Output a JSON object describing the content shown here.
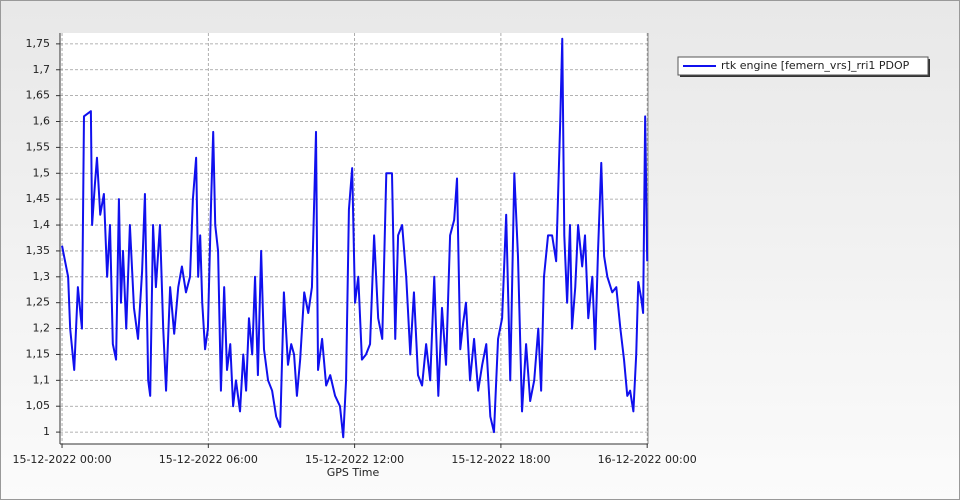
{
  "chart_data": {
    "type": "line",
    "xlabel": "GPS Time",
    "xlim": [
      "2022-12-14T23:55",
      "2022-12-16T00:02"
    ],
    "xticks": [
      {
        "value": "2022-12-15T00:00",
        "label": "15-12-2022 00:00"
      },
      {
        "value": "2022-12-15T06:00",
        "label": "15-12-2022 06:00"
      },
      {
        "value": "2022-12-15T12:00",
        "label": "15-12-2022 12:00"
      },
      {
        "value": "2022-12-15T18:00",
        "label": "15-12-2022 18:00"
      },
      {
        "value": "2022-12-16T00:00",
        "label": "16-12-2022 00:00"
      }
    ],
    "ylim": [
      0.977,
      1.771
    ],
    "yticks": [
      1,
      {
        "value": 1.05,
        "label": "1,05"
      },
      {
        "value": 1.1,
        "label": "1,1"
      },
      {
        "value": 1.15,
        "label": "1,15"
      },
      {
        "value": 1.2,
        "label": "1,2"
      },
      {
        "value": 1.25,
        "label": "1,25"
      },
      {
        "value": 1.3,
        "label": "1,3"
      },
      {
        "value": 1.35,
        "label": "1,35"
      },
      {
        "value": 1.4,
        "label": "1,4"
      },
      {
        "value": 1.45,
        "label": "1,45"
      },
      {
        "value": 1.5,
        "label": "1,5"
      },
      {
        "value": 1.55,
        "label": "1,55"
      },
      {
        "value": 1.6,
        "label": "1,6"
      },
      {
        "value": 1.65,
        "label": "1,65"
      },
      {
        "value": 1.7,
        "label": "1,7"
      },
      {
        "value": 1.75,
        "label": "1,75"
      }
    ],
    "grid": true,
    "legend": "right",
    "x": [
      "2022-12-15T00:00",
      "2022-12-15T00:15",
      "2022-12-15T00:20",
      "2022-12-15T00:30",
      "2022-12-15T00:39",
      "2022-12-15T00:49",
      "2022-12-15T00:54",
      "2022-12-15T01:11",
      "2022-12-15T01:14",
      "2022-12-15T01:21",
      "2022-12-15T01:26",
      "2022-12-15T01:34",
      "2022-12-15T01:43",
      "2022-12-15T01:51",
      "2022-12-15T01:58",
      "2022-12-15T02:05",
      "2022-12-15T02:13",
      "2022-12-15T02:20",
      "2022-12-15T02:25",
      "2022-12-15T02:30",
      "2022-12-15T02:38",
      "2022-12-15T02:47",
      "2022-12-15T02:57",
      "2022-12-15T03:07",
      "2022-12-15T03:17",
      "2022-12-15T03:24",
      "2022-12-15T03:32",
      "2022-12-15T03:37",
      "2022-12-15T03:44",
      "2022-12-15T03:51",
      "2022-12-15T04:01",
      "2022-12-15T04:09",
      "2022-12-15T04:16",
      "2022-12-15T04:26",
      "2022-12-15T04:36",
      "2022-12-15T04:46",
      "2022-12-15T04:55",
      "2022-12-15T05:05",
      "2022-12-15T05:15",
      "2022-12-15T05:22",
      "2022-12-15T05:30",
      "2022-12-15T05:35",
      "2022-12-15T05:40",
      "2022-12-15T05:45",
      "2022-12-15T05:52",
      "2022-12-15T05:59",
      "2022-12-15T06:07",
      "2022-12-15T06:12",
      "2022-12-15T06:17",
      "2022-12-15T06:24",
      "2022-12-15T06:31",
      "2022-12-15T06:39",
      "2022-12-15T06:46",
      "2022-12-15T06:54",
      "2022-12-15T07:01",
      "2022-12-15T07:08",
      "2022-12-15T07:18",
      "2022-12-15T07:26",
      "2022-12-15T07:33",
      "2022-12-15T07:40",
      "2022-12-15T07:48",
      "2022-12-15T07:55",
      "2022-12-15T08:02",
      "2022-12-15T08:10",
      "2022-12-15T08:17",
      "2022-12-15T08:27",
      "2022-12-15T08:37",
      "2022-12-15T08:47",
      "2022-12-15T08:57",
      "2022-12-15T09:06",
      "2022-12-15T09:16",
      "2022-12-15T09:24",
      "2022-12-15T09:31",
      "2022-12-15T09:38",
      "2022-12-15T09:46",
      "2022-12-15T09:56",
      "2022-12-15T10:06",
      "2022-12-15T10:15",
      "2022-12-15T10:25",
      "2022-12-15T10:30",
      "2022-12-15T10:40",
      "2022-12-15T10:50",
      "2022-12-15T11:00",
      "2022-12-15T11:12",
      "2022-12-15T11:24",
      "2022-12-15T11:32",
      "2022-12-15T11:39",
      "2022-12-15T11:46",
      "2022-12-15T11:54",
      "2022-12-15T12:01",
      "2022-12-15T12:09",
      "2022-12-15T12:18",
      "2022-12-15T12:28",
      "2022-12-15T12:38",
      "2022-12-15T12:48",
      "2022-12-15T12:58",
      "2022-12-15T13:08",
      "2022-12-15T13:18",
      "2022-12-15T13:32",
      "2022-12-15T13:40",
      "2022-12-15T13:47",
      "2022-12-15T13:57",
      "2022-12-15T14:07",
      "2022-12-15T14:17",
      "2022-12-15T14:26",
      "2022-12-15T14:36",
      "2022-12-15T14:46",
      "2022-12-15T14:56",
      "2022-12-15T15:06",
      "2022-12-15T15:16",
      "2022-12-15T15:26",
      "2022-12-15T15:35",
      "2022-12-15T15:45",
      "2022-12-15T15:55",
      "2022-12-15T16:05",
      "2022-12-15T16:12",
      "2022-12-15T16:20",
      "2022-12-15T16:27",
      "2022-12-15T16:34",
      "2022-12-15T16:44",
      "2022-12-15T16:54",
      "2022-12-15T17:04",
      "2022-12-15T17:14",
      "2022-12-15T17:24",
      "2022-12-15T17:34",
      "2022-12-15T17:43",
      "2022-12-15T17:53",
      "2022-12-15T18:03",
      "2022-12-15T18:13",
      "2022-12-15T18:23",
      "2022-12-15T18:33",
      "2022-12-15T18:42",
      "2022-12-15T18:52",
      "2022-12-15T19:02",
      "2022-12-15T19:12",
      "2022-12-15T19:22",
      "2022-12-15T19:32",
      "2022-12-15T19:39",
      "2022-12-15T19:46",
      "2022-12-15T19:56",
      "2022-12-15T20:06",
      "2022-12-15T20:16",
      "2022-12-15T20:26",
      "2022-12-15T20:31",
      "2022-12-15T20:36",
      "2022-12-15T20:43",
      "2022-12-15T20:50",
      "2022-12-15T20:55",
      "2022-12-15T21:03",
      "2022-12-15T21:10",
      "2022-12-15T21:20",
      "2022-12-15T21:27",
      "2022-12-15T21:35",
      "2022-12-15T21:45",
      "2022-12-15T21:52",
      "2022-12-15T21:59",
      "2022-12-15T22:07",
      "2022-12-15T22:14",
      "2022-12-15T22:22",
      "2022-12-15T22:34",
      "2022-12-15T22:44",
      "2022-12-15T22:54",
      "2022-12-15T23:03",
      "2022-12-15T23:11",
      "2022-12-15T23:18",
      "2022-12-15T23:26",
      "2022-12-15T23:33",
      "2022-12-15T23:38",
      "2022-12-15T23:45",
      "2022-12-15T23:50",
      "2022-12-15T23:55",
      "2022-12-16T00:00"
    ],
    "series": [
      {
        "name": "rtk engine [femern_vrs]_rri1 PDOP",
        "color": "#1010ee",
        "values": [
          1.36,
          1.3,
          1.2,
          1.12,
          1.28,
          1.2,
          1.61,
          1.62,
          1.4,
          1.48,
          1.53,
          1.42,
          1.46,
          1.3,
          1.4,
          1.17,
          1.14,
          1.45,
          1.25,
          1.35,
          1.2,
          1.4,
          1.24,
          1.18,
          1.31,
          1.46,
          1.1,
          1.07,
          1.4,
          1.28,
          1.4,
          1.2,
          1.08,
          1.28,
          1.19,
          1.28,
          1.32,
          1.27,
          1.3,
          1.45,
          1.53,
          1.3,
          1.38,
          1.25,
          1.16,
          1.2,
          1.45,
          1.58,
          1.4,
          1.35,
          1.08,
          1.28,
          1.12,
          1.17,
          1.05,
          1.1,
          1.04,
          1.15,
          1.08,
          1.22,
          1.15,
          1.3,
          1.11,
          1.35,
          1.16,
          1.1,
          1.08,
          1.03,
          1.01,
          1.27,
          1.13,
          1.17,
          1.15,
          1.07,
          1.14,
          1.27,
          1.23,
          1.28,
          1.58,
          1.12,
          1.18,
          1.09,
          1.11,
          1.07,
          1.05,
          0.99,
          1.1,
          1.43,
          1.51,
          1.25,
          1.3,
          1.14,
          1.15,
          1.17,
          1.38,
          1.22,
          1.18,
          1.5,
          1.5,
          1.18,
          1.38,
          1.4,
          1.3,
          1.15,
          1.27,
          1.11,
          1.09,
          1.17,
          1.1,
          1.3,
          1.07,
          1.24,
          1.13,
          1.38,
          1.41,
          1.49,
          1.16,
          1.21,
          1.25,
          1.1,
          1.18,
          1.08,
          1.13,
          1.17,
          1.03,
          1.0,
          1.18,
          1.22,
          1.42,
          1.1,
          1.5,
          1.34,
          1.04,
          1.17,
          1.06,
          1.1,
          1.2,
          1.08,
          1.3,
          1.38,
          1.38,
          1.33,
          1.6,
          1.76,
          1.38,
          1.25,
          1.4,
          1.2,
          1.28,
          1.4,
          1.32,
          1.38,
          1.22,
          1.3,
          1.16,
          1.35,
          1.52,
          1.34,
          1.3,
          1.27,
          1.28,
          1.2,
          1.14,
          1.07,
          1.08,
          1.04,
          1.15,
          1.29,
          1.26,
          1.23,
          1.61,
          1.33
        ]
      }
    ]
  }
}
